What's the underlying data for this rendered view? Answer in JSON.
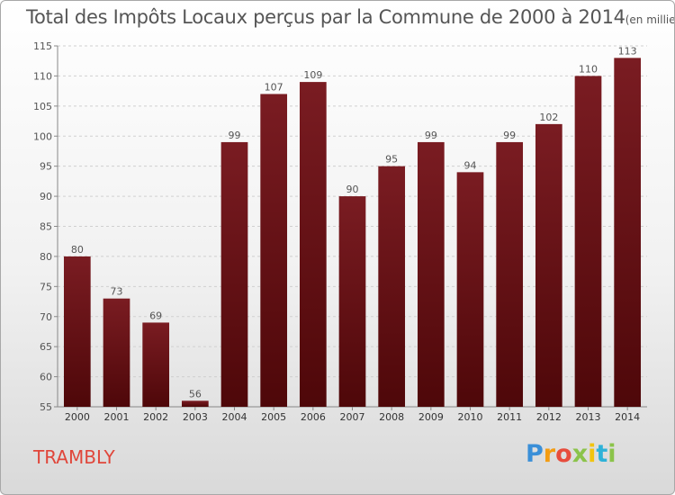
{
  "header": {
    "title": "Total des Impôts Locaux perçus par la Commune de 2000 à 2014",
    "unit": "(en milliers d'€)"
  },
  "commune": "TRAMBLY",
  "logo": {
    "letters": [
      "P",
      "r",
      "o",
      "x",
      "i",
      "t",
      "i"
    ]
  },
  "colors": {
    "bar": "#7a1c22",
    "bar_dark": "#4e0709",
    "grid": "#d0d0d0",
    "text": "#555555"
  },
  "chart_data": {
    "type": "bar",
    "title": "Total des Impôts Locaux perçus par la Commune de 2000 à 2014",
    "xlabel": "",
    "ylabel": "",
    "ylim": [
      55,
      115
    ],
    "yticks": [
      55,
      60,
      65,
      70,
      75,
      80,
      85,
      90,
      95,
      100,
      105,
      110,
      115
    ],
    "categories": [
      "2000",
      "2001",
      "2002",
      "2003",
      "2004",
      "2005",
      "2006",
      "2007",
      "2008",
      "2009",
      "2010",
      "2011",
      "2012",
      "2013",
      "2014"
    ],
    "values": [
      80,
      73,
      69,
      56,
      99,
      107,
      109,
      90,
      95,
      99,
      94,
      99,
      102,
      110,
      113
    ]
  }
}
